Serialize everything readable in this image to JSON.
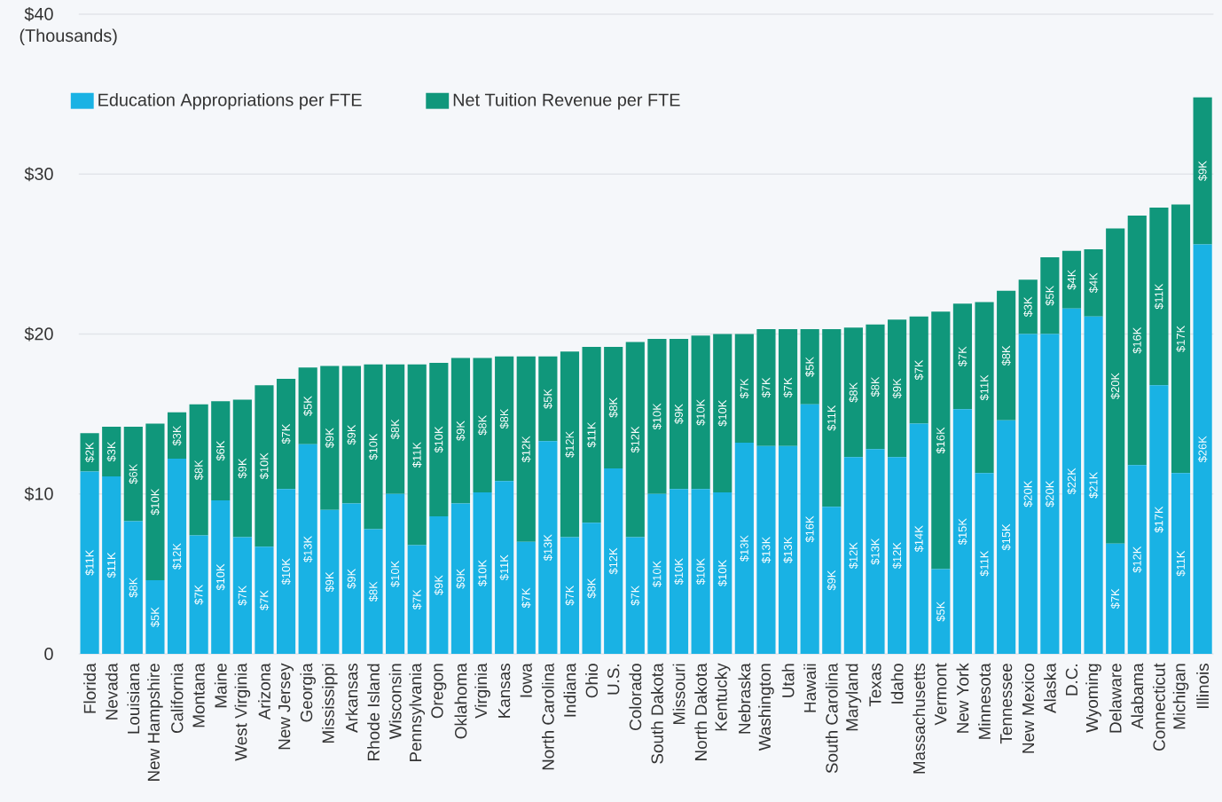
{
  "chart_data": {
    "type": "bar",
    "stacked": true,
    "ylabel": "(Thousands)",
    "categories": [
      "Florida",
      "Nevada",
      "Louisiana",
      "New Hampshire",
      "California",
      "Montana",
      "Maine",
      "West Virginia",
      "Arizona",
      "New Jersey",
      "Georgia",
      "Mississippi",
      "Arkansas",
      "Rhode Island",
      "Wisconsin",
      "Pennsylvania",
      "Oregon",
      "Oklahoma",
      "Virginia",
      "Kansas",
      "Iowa",
      "North Carolina",
      "Indiana",
      "Ohio",
      "U.S.",
      "Colorado",
      "South Dakota",
      "Missouri",
      "North Dakota",
      "Kentucky",
      "Nebraska",
      "Washington",
      "Utah",
      "Hawaii",
      "South Carolina",
      "Maryland",
      "Texas",
      "Idaho",
      "Massachusetts",
      "Vermont",
      "New York",
      "Minnesota",
      "Tennessee",
      "New Mexico",
      "Alaska",
      "D.C.",
      "Wyoming",
      "Delaware",
      "Alabama",
      "Connecticut",
      "Michigan",
      "Illinois"
    ],
    "series": [
      {
        "name": "Education Appropriations per FTE",
        "color": "#19b2e4",
        "values": [
          11.4,
          11.1,
          8.3,
          4.6,
          12.2,
          7.4,
          9.6,
          7.3,
          6.7,
          10.3,
          13.1,
          9.0,
          9.4,
          7.8,
          10.0,
          6.8,
          8.6,
          9.4,
          10.1,
          10.8,
          7.0,
          13.3,
          7.3,
          8.2,
          11.6,
          7.3,
          10.0,
          10.3,
          10.3,
          10.1,
          13.2,
          13.0,
          13.0,
          15.6,
          9.2,
          12.3,
          12.8,
          12.3,
          14.4,
          5.3,
          15.3,
          11.3,
          14.6,
          20.0,
          20.0,
          21.6,
          21.1,
          6.9,
          11.8,
          16.8,
          11.3,
          25.6
        ],
        "value_labels": [
          "$11K",
          "$11K",
          "$8K",
          "$5K",
          "$12K",
          "$7K",
          "$10K",
          "$7K",
          "$7K",
          "$10K",
          "$13K",
          "$9K",
          "$9K",
          "$8K",
          "$10K",
          "$7K",
          "$9K",
          "$9K",
          "$10K",
          "$11K",
          "$7K",
          "$13K",
          "$7K",
          "$8K",
          "$12K",
          "$7K",
          "$10K",
          "$10K",
          "$10K",
          "$10K",
          "$13K",
          "$13K",
          "$13K",
          "$16K",
          "$9K",
          "$12K",
          "$13K",
          "$12K",
          "$14K",
          "$5K",
          "$15K",
          "$11K",
          "$15K",
          "$20K",
          "$20K",
          "$22K",
          "$21K",
          "$7K",
          "$12K",
          "$17K",
          "$11K",
          "$26K"
        ]
      },
      {
        "name": "Net Tuition Revenue per FTE",
        "color": "#10977b",
        "values": [
          2.4,
          3.1,
          5.9,
          9.8,
          2.9,
          8.2,
          6.2,
          8.6,
          10.1,
          6.9,
          4.8,
          9.0,
          8.6,
          10.3,
          8.1,
          11.3,
          9.6,
          9.1,
          8.4,
          7.8,
          11.6,
          5.3,
          11.6,
          11.0,
          7.6,
          12.2,
          9.7,
          9.4,
          9.6,
          9.9,
          6.8,
          7.3,
          7.3,
          4.7,
          11.1,
          8.1,
          7.8,
          8.6,
          6.7,
          16.1,
          6.6,
          10.7,
          8.1,
          3.4,
          4.8,
          3.6,
          4.2,
          19.7,
          15.6,
          11.1,
          16.8,
          9.2
        ],
        "value_labels": [
          "$2K",
          "$3K",
          "$6K",
          "$10K",
          "$3K",
          "$8K",
          "$6K",
          "$9K",
          "$10K",
          "$7K",
          "$5K",
          "$9K",
          "$9K",
          "$10K",
          "$8K",
          "$11K",
          "$10K",
          "$9K",
          "$8K",
          "$8K",
          "$12K",
          "$5K",
          "$12K",
          "$11K",
          "$8K",
          "$12K",
          "$10K",
          "$9K",
          "$10K",
          "$10K",
          "$7K",
          "$7K",
          "$7K",
          "$5K",
          "$11K",
          "$8K",
          "$8K",
          "$9K",
          "$7K",
          "$16K",
          "$7K",
          "$11K",
          "$8K",
          "$3K",
          "$5K",
          "$4K",
          "$4K",
          "$20K",
          "$16K",
          "$11K",
          "$17K",
          "$9K"
        ]
      }
    ],
    "ylim": [
      0,
      40
    ],
    "yticks": [
      0,
      {
        "value": 10,
        "label": "$10"
      },
      {
        "value": 20,
        "label": "$20"
      },
      {
        "value": 30,
        "label": "$30"
      },
      {
        "value": 40,
        "label": "$40"
      }
    ],
    "grid": "y",
    "legend": "top left"
  }
}
